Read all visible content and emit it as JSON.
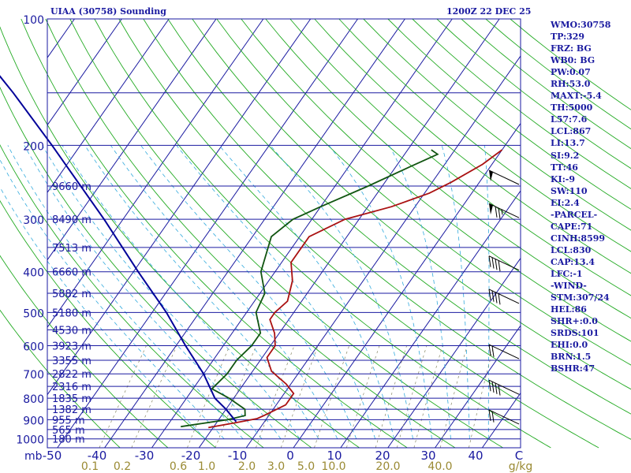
{
  "header": {
    "station": "UIAA (30758) Sounding",
    "time": "1200Z 22 DEC 25"
  },
  "indices": [
    "WMO:30758",
    "TP:329",
    "FRZ: BG",
    "WB0: BG",
    "PW:0.07",
    "RH:53.0",
    "MAXT:-5.4",
    "TH:5000",
    "L57:7.6",
    "LCL:867",
    "LI:13.7",
    "SI:9.2",
    "TT:46",
    "KI:-9",
    "SW:110",
    "EI:2.4",
    "-PARCEL-",
    "CAPE:71",
    "CINH:8599",
    "LCL:830",
    "CAP:13.4",
    "LFC:-1",
    "-WIND-",
    "STM:307/24",
    "HEL:86",
    "SHR+:0.0",
    "SRDS:101",
    "EHI:0.0",
    "BRN:1.5",
    "BSHR:47"
  ],
  "colors": {
    "isobar": "#1a1aa0",
    "isotherm": "#1a1aa0",
    "dry_adiabat": "#22aa22",
    "moist_adiabat": "#33aadd",
    "mixing_ratio": "#888866",
    "temperature": "#aa1111",
    "dewpoint": "#115511",
    "parcel": "#000099",
    "text": "#1a1aa0",
    "mixing_label": "#9a8a33"
  },
  "chart_data": {
    "type": "line",
    "title": "UIAA (30758) Sounding",
    "diagram": "skew-T log-p",
    "pressure_levels": [
      100,
      200,
      300,
      400,
      500,
      600,
      700,
      800,
      900,
      1000
    ],
    "pressure_ticks": [
      "100",
      "200",
      "300",
      "400",
      "500",
      "600",
      "700",
      "800",
      "900",
      "1000"
    ],
    "pressure_unit": "mb",
    "ylim": [
      1050,
      100
    ],
    "temperature_ticks": [
      -50,
      -40,
      -30,
      -20,
      -10,
      0,
      10,
      20,
      30,
      40
    ],
    "temperature_tick_labels": [
      "-50",
      "-40",
      "-30",
      "-20",
      "-10",
      "0",
      "10",
      "20",
      "30",
      "40"
    ],
    "temperature_unit": "C",
    "mixing_ratio_labels": [
      "0.1",
      "0.2",
      "0.6",
      "1.0",
      "2.0",
      "3.0",
      "5.0",
      "10.0",
      "20.0",
      "40.0"
    ],
    "mixing_ratio_unit": "g/kg",
    "height_labels": [
      {
        "p": 250,
        "label": "9660 m"
      },
      {
        "p": 300,
        "label": "8490 m"
      },
      {
        "p": 350,
        "label": "7513 m"
      },
      {
        "p": 400,
        "label": "6660 m"
      },
      {
        "p": 450,
        "label": "5882 m"
      },
      {
        "p": 500,
        "label": "5180 m"
      },
      {
        "p": 550,
        "label": "4530 m"
      },
      {
        "p": 600,
        "label": "3923 m"
      },
      {
        "p": 650,
        "label": "3355 m"
      },
      {
        "p": 700,
        "label": "2822 m"
      },
      {
        "p": 750,
        "label": "2316 m"
      },
      {
        "p": 800,
        "label": "1835 m"
      },
      {
        "p": 850,
        "label": "1382 m"
      },
      {
        "p": 900,
        "label": "955 m"
      },
      {
        "p": 950,
        "label": "565 m"
      },
      {
        "p": 1000,
        "label": "180 m"
      }
    ],
    "series": [
      {
        "points": [
          {
            "p": 940,
            "t": -21
          },
          {
            "p": 915,
            "t": -16
          },
          {
            "p": 895,
            "t": -12
          },
          {
            "p": 880,
            "t": -11
          },
          {
            "p": 830,
            "t": -8
          },
          {
            "p": 780,
            "t": -8
          },
          {
            "p": 740,
            "t": -11
          },
          {
            "p": 690,
            "t": -16
          },
          {
            "p": 640,
            "t": -19
          },
          {
            "p": 600,
            "t": -19
          },
          {
            "p": 560,
            "t": -21
          },
          {
            "p": 520,
            "t": -24
          },
          {
            "p": 500,
            "t": -24
          },
          {
            "p": 470,
            "t": -23
          },
          {
            "p": 420,
            "t": -25
          },
          {
            "p": 380,
            "t": -28
          },
          {
            "p": 330,
            "t": -28
          },
          {
            "p": 300,
            "t": -23
          },
          {
            "p": 280,
            "t": -15
          },
          {
            "p": 260,
            "t": -9
          },
          {
            "p": 245,
            "t": -6
          },
          {
            "p": 222,
            "t": -2
          },
          {
            "p": 205,
            "t": 0
          }
        ]
      },
      {
        "points": [
          {
            "p": 935,
            "t": -27
          },
          {
            "p": 915,
            "t": -22
          },
          {
            "p": 900,
            "t": -18
          },
          {
            "p": 880,
            "t": -15
          },
          {
            "p": 850,
            "t": -16
          },
          {
            "p": 800,
            "t": -21
          },
          {
            "p": 760,
            "t": -26
          },
          {
            "p": 700,
            "t": -25
          },
          {
            "p": 650,
            "t": -25
          },
          {
            "p": 600,
            "t": -24
          },
          {
            "p": 560,
            "t": -24
          },
          {
            "p": 500,
            "t": -28
          },
          {
            "p": 450,
            "t": -29
          },
          {
            "p": 400,
            "t": -33
          },
          {
            "p": 330,
            "t": -36
          },
          {
            "p": 300,
            "t": -34
          },
          {
            "p": 280,
            "t": -30
          },
          {
            "p": 250,
            "t": -23
          },
          {
            "p": 225,
            "t": -17
          },
          {
            "p": 210,
            "t": -13
          },
          {
            "p": 205,
            "t": -15
          }
        ]
      },
      {
        "points": [
          {
            "p": 910,
            "t": -16
          },
          {
            "p": 850,
            "t": -20
          },
          {
            "p": 800,
            "t": -24
          },
          {
            "p": 700,
            "t": -30
          },
          {
            "p": 600,
            "t": -38
          },
          {
            "p": 500,
            "t": -47
          },
          {
            "p": 400,
            "t": -59
          },
          {
            "p": 300,
            "t": -74
          },
          {
            "p": 200,
            "t": -96
          },
          {
            "p": 150,
            "t": -112
          },
          {
            "p": 110,
            "t": -130
          }
        ]
      }
    ],
    "wind_barbs": [
      {
        "p": 250,
        "dir": 280,
        "kt": 50
      },
      {
        "p": 300,
        "dir": 280,
        "kt": 75
      },
      {
        "p": 400,
        "dir": 280,
        "kt": 40
      },
      {
        "p": 480,
        "dir": 280,
        "kt": 40
      },
      {
        "p": 650,
        "dir": 280,
        "kt": 20
      },
      {
        "p": 790,
        "dir": 280,
        "kt": 40
      },
      {
        "p": 930,
        "dir": 280,
        "kt": 20
      }
    ]
  }
}
